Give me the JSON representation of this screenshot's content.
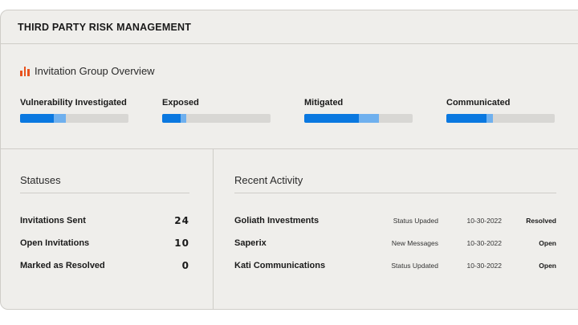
{
  "header": {
    "title": "THIRD PARTY RISK MANAGEMENT"
  },
  "overview": {
    "title": "Invitation Group Overview",
    "icon": "bar-chart-icon",
    "accent": "#e8531f",
    "metrics": [
      {
        "label": "Vulnerability Investigated",
        "primary": 0.31,
        "secondary": 0.11
      },
      {
        "label": "Exposed",
        "primary": 0.17,
        "secondary": 0.05
      },
      {
        "label": "Mitigated",
        "primary": 0.5,
        "secondary": 0.19
      },
      {
        "label": "Communicated",
        "primary": 0.37,
        "secondary": 0.06
      }
    ],
    "colors": {
      "primary": "#0a78e0",
      "secondary": "#6fb0ee",
      "track": "#d8d7d4"
    }
  },
  "statuses": {
    "title": "Statuses",
    "items": [
      {
        "label": "Invitations Sent",
        "value": "24"
      },
      {
        "label": "Open Invitations",
        "value": "10"
      },
      {
        "label": "Marked as Resolved",
        "value": "0"
      }
    ]
  },
  "activity": {
    "title": "Recent Activity",
    "items": [
      {
        "name": "Goliath Investments",
        "status": "Status Upaded",
        "date": "10-30-2022",
        "state": "Resolved"
      },
      {
        "name": "Saperix",
        "status": "New Messages",
        "date": "10-30-2022",
        "state": "Open"
      },
      {
        "name": "Kati Communications",
        "status": "Status Updated",
        "date": "10-30-2022",
        "state": "Open"
      }
    ]
  }
}
